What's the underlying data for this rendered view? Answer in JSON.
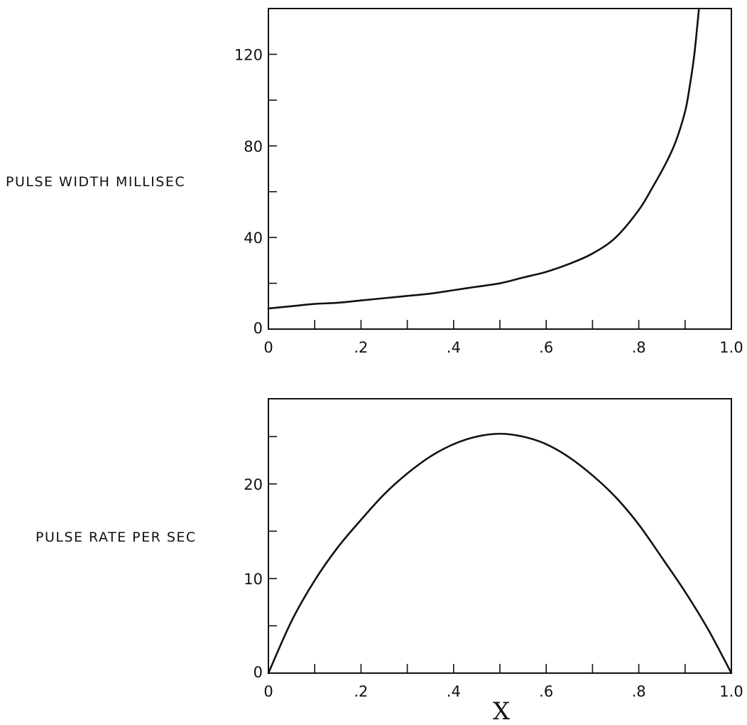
{
  "chart_data": [
    {
      "type": "line",
      "title": "",
      "xlabel": "",
      "ylabel": "PULSE WIDTH MILLISEC",
      "xlim": [
        0,
        1.0
      ],
      "ylim": [
        0,
        140
      ],
      "x_ticks": [
        0,
        0.1,
        0.2,
        0.3,
        0.4,
        0.5,
        0.6,
        0.7,
        0.8,
        0.9,
        1.0
      ],
      "x_tick_labels": [
        "0",
        "",
        ".2",
        "",
        ".4",
        "",
        ".6",
        "",
        ".8",
        "",
        "1.0"
      ],
      "y_ticks": [
        0,
        20,
        40,
        60,
        80,
        100,
        120
      ],
      "y_tick_labels": [
        "0",
        "",
        "40",
        "",
        "80",
        "",
        "120"
      ],
      "grid": false,
      "series": [
        {
          "x": [
            0,
            0.05,
            0.1,
            0.15,
            0.2,
            0.25,
            0.3,
            0.35,
            0.4,
            0.45,
            0.5,
            0.55,
            0.6,
            0.65,
            0.7,
            0.75,
            0.8,
            0.83,
            0.86,
            0.88,
            0.9,
            0.91,
            0.92,
            0.93
          ],
          "y": [
            9,
            10,
            11,
            11.5,
            12.5,
            13.5,
            14.5,
            15.5,
            17,
            18.5,
            20,
            22.5,
            25,
            28.5,
            33,
            40,
            52,
            62,
            73,
            82,
            95,
            106,
            120,
            140
          ]
        }
      ]
    },
    {
      "type": "line",
      "title": "",
      "xlabel": "X",
      "ylabel": "PULSE RATE PER SEC",
      "xlim": [
        0,
        1.0
      ],
      "ylim": [
        0,
        29
      ],
      "x_ticks": [
        0,
        0.1,
        0.2,
        0.3,
        0.4,
        0.5,
        0.6,
        0.7,
        0.8,
        0.9,
        1.0
      ],
      "x_tick_labels": [
        "0",
        "",
        ".2",
        "",
        ".4",
        "",
        ".6",
        "",
        ".8",
        "",
        "1.0"
      ],
      "y_ticks": [
        0,
        5,
        10,
        15,
        20,
        25
      ],
      "y_tick_labels": [
        "0",
        "",
        "10",
        "",
        "20",
        ""
      ],
      "grid": false,
      "series": [
        {
          "x": [
            0,
            0.05,
            0.1,
            0.15,
            0.2,
            0.25,
            0.3,
            0.35,
            0.4,
            0.45,
            0.5,
            0.55,
            0.6,
            0.65,
            0.7,
            0.75,
            0.8,
            0.85,
            0.9,
            0.95,
            1.0
          ],
          "y": [
            0,
            5.5,
            9.8,
            13.3,
            16.2,
            18.9,
            21.1,
            22.9,
            24.2,
            25.0,
            25.3,
            25.0,
            24.2,
            22.8,
            20.9,
            18.6,
            15.7,
            12.2,
            8.6,
            4.6,
            0
          ]
        }
      ]
    }
  ]
}
